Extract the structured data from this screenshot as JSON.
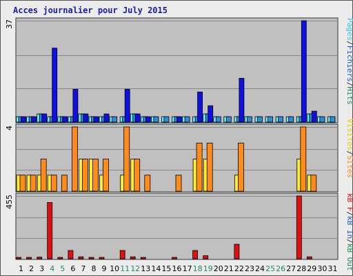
{
  "chart_data": {
    "type": "bar",
    "title": "Acces journalier pour July 2015",
    "x": [
      "1",
      "2",
      "3",
      "4",
      "5",
      "6",
      "7",
      "8",
      "9",
      "10",
      "11",
      "12",
      "13",
      "14",
      "15",
      "16",
      "17",
      "18",
      "19",
      "20",
      "21",
      "22",
      "23",
      "24",
      "25",
      "26",
      "27",
      "28",
      "29",
      "30",
      "31"
    ],
    "weekend_days": [
      "4",
      "5",
      "11",
      "12",
      "18",
      "19",
      "25",
      "26"
    ],
    "panels": [
      {
        "id": "hits-panel",
        "max_label": "37",
        "ylim": [
          0,
          37
        ],
        "series": [
          {
            "name": "Pages",
            "color": "#66f0ff",
            "values": [
              2,
              2,
              3,
              2,
              2,
              2,
              3,
              2,
              2,
              2,
              2,
              3,
              2,
              2,
              2,
              2,
              2,
              2,
              3,
              2,
              2,
              2,
              2,
              2,
              2,
              2,
              2,
              2,
              3,
              2,
              2
            ]
          },
          {
            "name": "Fichiers",
            "color": "#2b8fd6",
            "values": [
              2,
              2,
              3,
              2,
              2,
              2,
              3,
              2,
              2,
              2,
              2,
              3,
              2,
              2,
              2,
              2,
              2,
              2,
              3,
              2,
              2,
              2,
              2,
              2,
              2,
              2,
              2,
              2,
              3,
              2,
              2
            ]
          },
          {
            "name": "Hits",
            "color": "#1010e0",
            "values": [
              2,
              2,
              3,
              27,
              2,
              12,
              3,
              2,
              3,
              0,
              12,
              3,
              2,
              0,
              0,
              2,
              0,
              11,
              6,
              0,
              0,
              16,
              0,
              0,
              0,
              0,
              0,
              37,
              4,
              0,
              0
            ]
          }
        ]
      },
      {
        "id": "visits-panel",
        "max_label": "4",
        "ylim": [
          0,
          4
        ],
        "series": [
          {
            "name": "Visites",
            "color": "#ffee30",
            "values": [
              1,
              1,
              1,
              1,
              0,
              0,
              2,
              2,
              1,
              0,
              1,
              2,
              0,
              0,
              0,
              0,
              0,
              2,
              2,
              0,
              0,
              1,
              0,
              0,
              0,
              0,
              0,
              2,
              1,
              0,
              0
            ]
          },
          {
            "name": "Sites",
            "color": "#ff8c1a",
            "values": [
              1,
              1,
              2,
              1,
              1,
              4,
              2,
              2,
              2,
              0,
              4,
              2,
              1,
              0,
              0,
              1,
              0,
              3,
              3,
              0,
              0,
              3,
              0,
              0,
              0,
              0,
              0,
              4,
              1,
              0,
              0
            ]
          }
        ]
      },
      {
        "id": "kbytes-panel",
        "max_label": "455",
        "ylim": [
          0,
          455
        ],
        "series": [
          {
            "name": "kB F",
            "color": "#e01010",
            "values": [
              10,
              10,
              12,
              408,
              10,
              60,
              14,
              10,
              10,
              0,
              60,
              14,
              10,
              0,
              0,
              10,
              0,
              60,
              22,
              0,
              0,
              105,
              0,
              0,
              0,
              0,
              0,
              455,
              14,
              0,
              0
            ]
          },
          {
            "name": "kB In",
            "color": "#1a5bc8",
            "values": [
              0,
              0,
              0,
              0,
              0,
              0,
              0,
              0,
              0,
              0,
              0,
              0,
              0,
              0,
              0,
              0,
              0,
              0,
              0,
              0,
              0,
              0,
              0,
              0,
              0,
              0,
              0,
              0,
              0,
              0,
              0
            ]
          },
          {
            "name": "kB Out",
            "color": "#1f8a5b",
            "values": [
              0,
              0,
              0,
              0,
              0,
              0,
              0,
              0,
              0,
              0,
              0,
              0,
              0,
              0,
              0,
              0,
              0,
              0,
              0,
              0,
              0,
              0,
              0,
              0,
              0,
              0,
              0,
              0,
              0,
              0,
              0
            ]
          }
        ]
      }
    ],
    "legends": [
      {
        "panel": "hits-panel",
        "items": [
          {
            "text": "Pages",
            "color": "#33c8e8"
          },
          {
            "text": "/",
            "color": "#333333"
          },
          {
            "text": "Fichiers",
            "color": "#1a5bc8"
          },
          {
            "text": "/",
            "color": "#333333"
          },
          {
            "text": "Hits",
            "color": "#1f8a5b"
          }
        ]
      },
      {
        "panel": "visits-panel",
        "items": [
          {
            "text": "Visites",
            "color": "#e8d000"
          },
          {
            "text": "/",
            "color": "#333333"
          },
          {
            "text": "Sites",
            "color": "#ff8c1a"
          }
        ]
      },
      {
        "panel": "kbytes-panel",
        "items": [
          {
            "text": "kB F",
            "color": "#e01010"
          },
          {
            "text": "/",
            "color": "#333333"
          },
          {
            "text": "kB In",
            "color": "#1a5bc8"
          },
          {
            "text": "/",
            "color": "#333333"
          },
          {
            "text": "kB Out",
            "color": "#1f8a5b"
          }
        ]
      }
    ],
    "colors": {
      "plot_bg": "#c0c0c0",
      "grid": "#888888",
      "weekday_tick": "#000000",
      "weekend_tick": "#1f8a5b"
    },
    "grid": true
  }
}
